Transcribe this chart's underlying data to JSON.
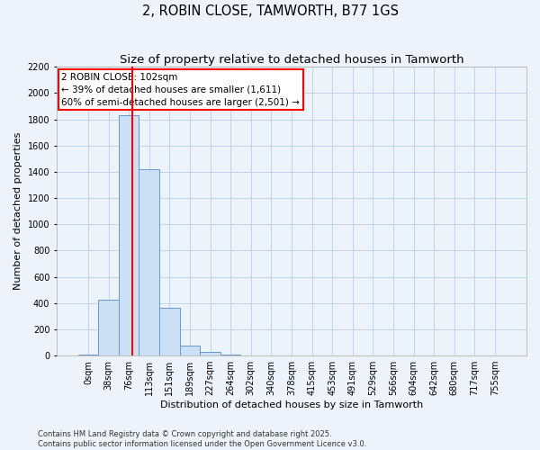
{
  "title": "2, ROBIN CLOSE, TAMWORTH, B77 1GS",
  "subtitle": "Size of property relative to detached houses in Tamworth",
  "xlabel": "Distribution of detached houses by size in Tamworth",
  "ylabel": "Number of detached properties",
  "categories": [
    "0sqm",
    "38sqm",
    "76sqm",
    "113sqm",
    "151sqm",
    "189sqm",
    "227sqm",
    "264sqm",
    "302sqm",
    "340sqm",
    "378sqm",
    "415sqm",
    "453sqm",
    "491sqm",
    "529sqm",
    "566sqm",
    "604sqm",
    "642sqm",
    "680sqm",
    "717sqm",
    "755sqm"
  ],
  "values": [
    5,
    425,
    1830,
    1420,
    365,
    75,
    25,
    5,
    0,
    0,
    0,
    0,
    0,
    0,
    0,
    0,
    0,
    0,
    0,
    0,
    0
  ],
  "bar_color": "#cce0f5",
  "bar_edge_color": "#6699cc",
  "vline_x_data": 2.15,
  "vline_color": "red",
  "annotation_text": "2 ROBIN CLOSE: 102sqm\n← 39% of detached houses are smaller (1,611)\n60% of semi-detached houses are larger (2,501) →",
  "annotation_box_color": "white",
  "annotation_box_edge_color": "red",
  "ylim": [
    0,
    2200
  ],
  "yticks": [
    0,
    200,
    400,
    600,
    800,
    1000,
    1200,
    1400,
    1600,
    1800,
    2000,
    2200
  ],
  "grid_color": "#b8cfe8",
  "background_color": "#edf3fb",
  "footer": "Contains HM Land Registry data © Crown copyright and database right 2025.\nContains public sector information licensed under the Open Government Licence v3.0.",
  "title_fontsize": 10.5,
  "subtitle_fontsize": 9.5,
  "label_fontsize": 8,
  "tick_fontsize": 7,
  "footer_fontsize": 6
}
